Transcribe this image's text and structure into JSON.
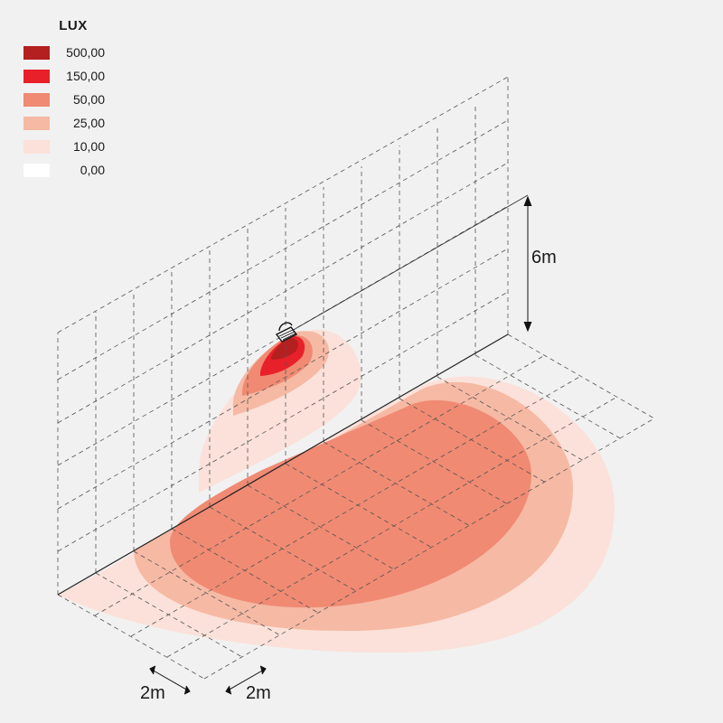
{
  "legend": {
    "title": "LUX",
    "items": [
      {
        "value": "500,00",
        "color": "#b3201f"
      },
      {
        "value": "150,00",
        "color": "#e8202a"
      },
      {
        "value": "50,00",
        "color": "#f08a73"
      },
      {
        "value": "25,00",
        "color": "#f6b9a4"
      },
      {
        "value": "10,00",
        "color": "#fbe1d9"
      },
      {
        "value": "0,00",
        "color": "#ffffff"
      }
    ]
  },
  "dimensions": {
    "mounting_height": "6m",
    "grid_spacing_x": "2m",
    "grid_spacing_y": "2m"
  }
}
